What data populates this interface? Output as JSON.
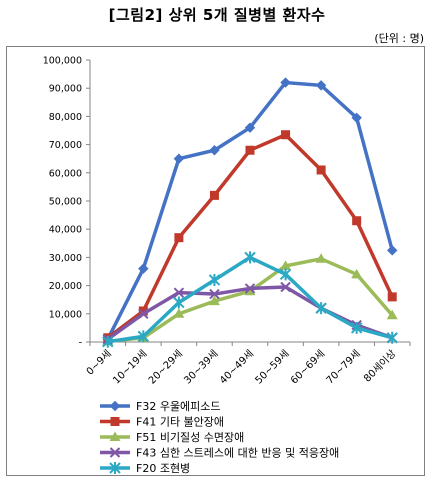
{
  "title": "[그림2] 상위 5개 질병별 환자수",
  "unit_note": "(단위 : 명)",
  "chart_data": {
    "type": "line",
    "categories": [
      "0~9세",
      "10~19세",
      "20~29세",
      "30~39세",
      "40~49세",
      "50~59세",
      "60~69세",
      "70~79세",
      "80세이상"
    ],
    "ylim": [
      0,
      100000
    ],
    "yticks": [
      "-",
      "10,000",
      "20,000",
      "30,000",
      "40,000",
      "50,000",
      "60,000",
      "70,000",
      "80,000",
      "90,000",
      "100,000"
    ],
    "grid": false,
    "legend_position": "bottom",
    "series": [
      {
        "name": "F32 우울에피소드",
        "color": "#4472C4",
        "marker": "diamond",
        "values": [
          1000,
          26000,
          65000,
          68000,
          76000,
          92000,
          91000,
          79500,
          32500
        ]
      },
      {
        "name": "F41 기타 불안장애",
        "color": "#C0392B",
        "marker": "square",
        "values": [
          1500,
          11000,
          37000,
          52000,
          68000,
          73500,
          61000,
          43000,
          16000
        ]
      },
      {
        "name": "F51 비기질성 수면장애",
        "color": "#9BBB59",
        "marker": "triangle",
        "values": [
          200,
          1500,
          10000,
          14500,
          18000,
          27000,
          29500,
          24000,
          9500
        ]
      },
      {
        "name": "F43 심한 스트레스에 대한 반응 및 적응장애",
        "color": "#7E57A6",
        "marker": "x",
        "values": [
          1000,
          10000,
          17500,
          17000,
          19000,
          19500,
          12000,
          6000,
          1500
        ]
      },
      {
        "name": "F20 조현병",
        "color": "#2AA8C4",
        "marker": "star",
        "values": [
          100,
          2000,
          14000,
          22000,
          30000,
          24000,
          12000,
          5000,
          1500
        ]
      }
    ]
  }
}
